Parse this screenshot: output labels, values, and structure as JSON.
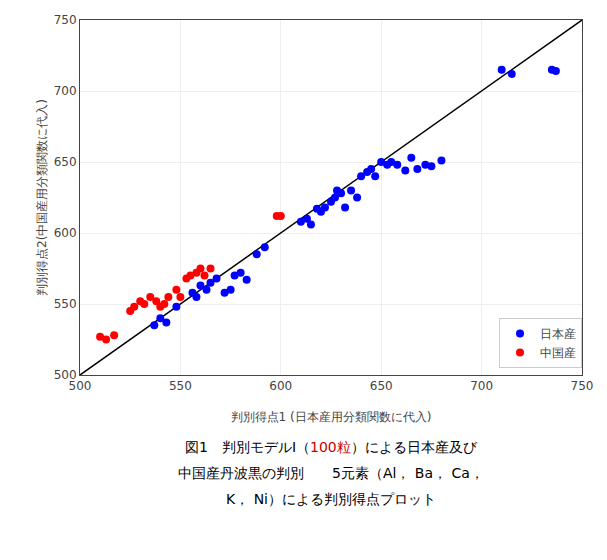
{
  "chart_data": {
    "type": "scatter",
    "series": [
      {
        "type": "line",
        "color": "#000000",
        "line_style": "solid",
        "x": [
          500,
          750
        ],
        "values": [
          500,
          750
        ]
      },
      {
        "name": "日本産",
        "type": "scatter",
        "color": "#0000ff",
        "marker": "circle",
        "x": [
          537,
          540,
          543,
          548,
          556,
          558,
          560,
          563,
          565,
          568,
          572,
          575,
          577,
          580,
          583,
          588,
          592,
          610,
          613,
          615,
          618,
          620,
          622,
          625,
          627,
          628,
          630,
          632,
          635,
          638,
          640,
          643,
          645,
          647,
          650,
          653,
          655,
          658,
          662,
          665,
          668,
          672,
          675,
          680,
          710,
          715,
          735,
          737
        ],
        "values": [
          535,
          540,
          537,
          548,
          558,
          555,
          563,
          560,
          565,
          568,
          558,
          560,
          570,
          572,
          567,
          585,
          590,
          608,
          610,
          606,
          617,
          615,
          618,
          622,
          625,
          630,
          628,
          618,
          630,
          625,
          640,
          643,
          645,
          640,
          650,
          648,
          650,
          648,
          644,
          653,
          645,
          648,
          647,
          651,
          715,
          712,
          715,
          714
        ]
      },
      {
        "name": "中国産",
        "type": "scatter",
        "color": "#ff0000",
        "marker": "circle",
        "x": [
          510,
          513,
          517,
          525,
          527,
          530,
          532,
          535,
          538,
          540,
          542,
          544,
          548,
          550,
          553,
          555,
          558,
          560,
          562,
          565,
          598,
          600
        ],
        "values": [
          527,
          525,
          528,
          545,
          548,
          552,
          550,
          555,
          552,
          548,
          550,
          555,
          560,
          555,
          568,
          570,
          572,
          575,
          570,
          575,
          612,
          612
        ]
      }
    ],
    "xlabel": "判別得点1 (日本産用分類関数に代入)",
    "ylabel": "判別得点2(中国産用分類関数に代入)",
    "xlim": [
      500,
      750
    ],
    "ylim": [
      500,
      750
    ],
    "xticks": [
      500,
      550,
      600,
      650,
      700,
      750
    ],
    "yticks": [
      500,
      550,
      600,
      650,
      700,
      750
    ],
    "grid": true,
    "legend": "lower right",
    "annotations": [
      [
        {
          "text": "図1　判別モデルⅠ（"
        },
        {
          "text": "100粒",
          "color": "#cc0000"
        },
        {
          "text": "）による日本産及び"
        }
      ],
      [
        {
          "text": "中国産丹波黒の判別　　5元素（Al， Ba， Ca，"
        }
      ],
      [
        {
          "text": "K， Ni）による判別得点プロット"
        }
      ]
    ]
  }
}
